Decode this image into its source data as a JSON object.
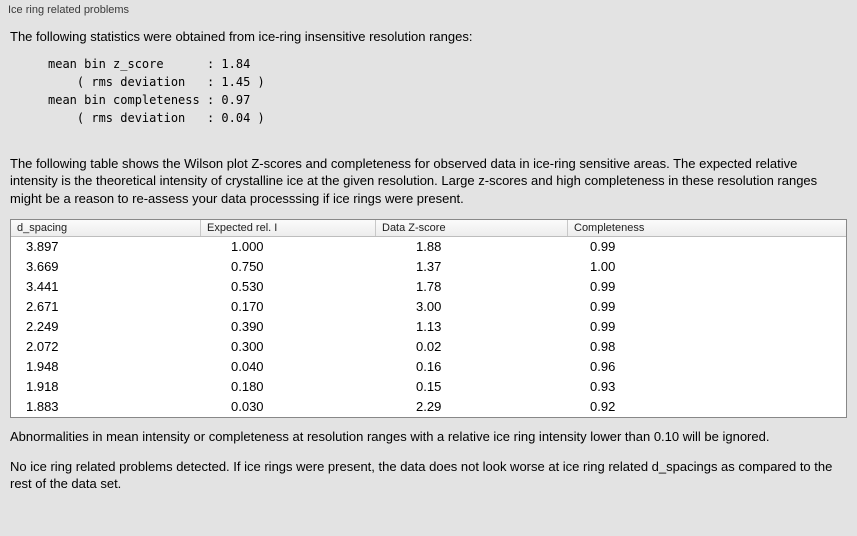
{
  "panel": {
    "title": "Ice ring related problems"
  },
  "stats": {
    "intro": "The following statistics were obtained from ice-ring insensitive resolution ranges:",
    "block": "mean bin z_score      : 1.84\n    ( rms deviation   : 1.45 )\nmean bin completeness : 0.97\n    ( rms deviation   : 0.04 )"
  },
  "table_description": "The following table shows the Wilson plot Z-scores and completeness for observed data in ice-ring sensitive areas. The expected relative intensity is the theoretical intensity of crystalline ice at the given resolution. Large z-scores and high completeness in these resolution ranges might be a reason to re-assess your data processsing if ice rings were present.",
  "table": {
    "columns": [
      "d_spacing",
      "Expected rel. I",
      "Data Z-score",
      "Completeness"
    ],
    "rows": [
      [
        "3.897",
        "1.000",
        "1.88",
        "0.99"
      ],
      [
        "3.669",
        "0.750",
        "1.37",
        "1.00"
      ],
      [
        "3.441",
        "0.530",
        "1.78",
        "0.99"
      ],
      [
        "2.671",
        "0.170",
        "3.00",
        "0.99"
      ],
      [
        "2.249",
        "0.390",
        "1.13",
        "0.99"
      ],
      [
        "2.072",
        "0.300",
        "0.02",
        "0.98"
      ],
      [
        "1.948",
        "0.040",
        "0.16",
        "0.96"
      ],
      [
        "1.918",
        "0.180",
        "0.15",
        "0.93"
      ],
      [
        "1.883",
        "0.030",
        "2.29",
        "0.92"
      ]
    ]
  },
  "notes": {
    "abnormalities": "Abnormalities in mean intensity or completeness at resolution ranges with a relative ice ring intensity lower than 0.10 will be ignored.",
    "conclusion": "No ice ring related problems detected. If ice rings were present, the data does not look worse at ice ring related d_spacings as compared to the rest of the data set."
  },
  "colors": {
    "background": "#e3e3e3",
    "table_background": "#ffffff",
    "table_border": "#888888",
    "table_header_background": "#f3f3f3"
  }
}
